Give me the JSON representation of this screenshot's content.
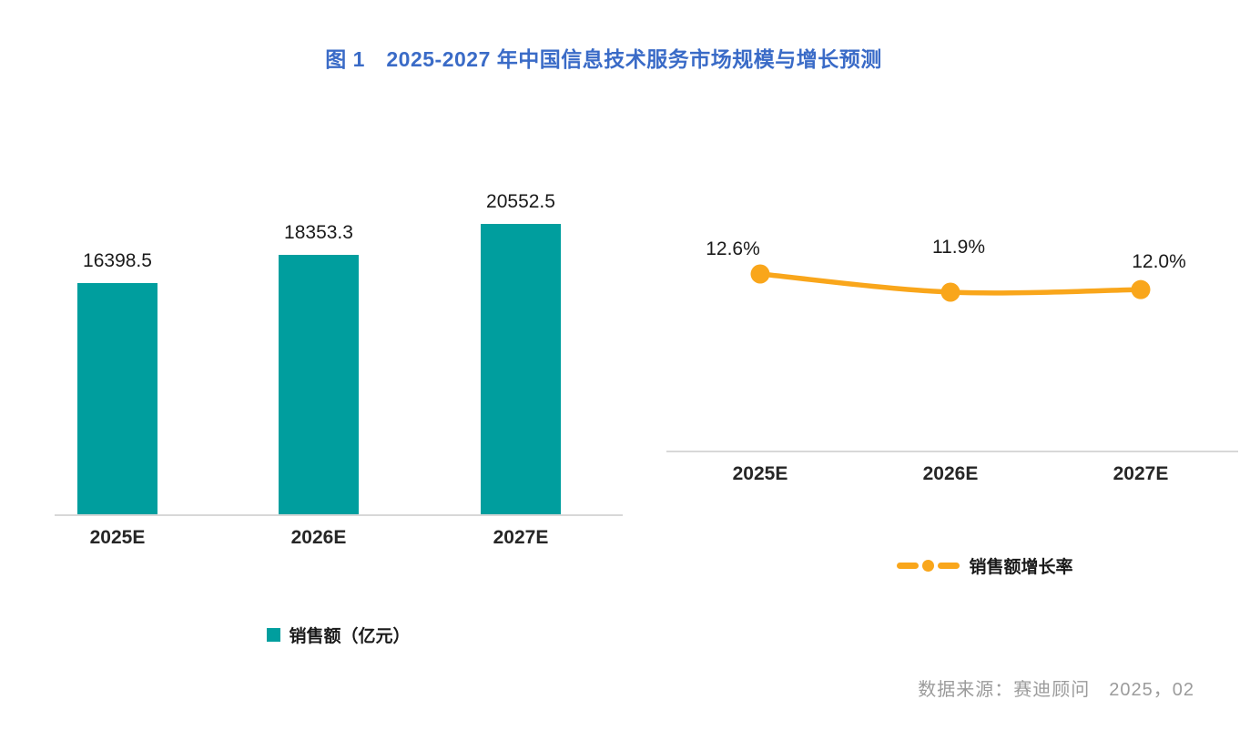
{
  "figure": {
    "title": "图 1　2025-2027 年中国信息技术服务市场规模与增长预测",
    "source_note": "数据来源：赛迪顾问　2025，02"
  },
  "colors": {
    "bar": "#009E9E",
    "line": "#F9A61B",
    "title": "#3A6BC7",
    "axis": "#D8D8D8",
    "text": "#1A1A1A",
    "source": "#9B9B9B"
  },
  "chart_data": [
    {
      "type": "bar",
      "title": "",
      "categories": [
        "2025E",
        "2026E",
        "2027E"
      ],
      "values": [
        16398.5,
        18353.3,
        20552.5
      ],
      "value_labels": [
        "16398.5",
        "18353.3",
        "20552.5"
      ],
      "legend": "销售额（亿元）",
      "series_name": "销售额（亿元）",
      "ylabel": "",
      "xlabel": "",
      "ylim": [
        0,
        20552.5
      ],
      "grid": false,
      "legend_position": "bottom",
      "bar_color": "#009E9E"
    },
    {
      "type": "line",
      "title": "",
      "categories": [
        "2025E",
        "2026E",
        "2027E"
      ],
      "values": [
        12.6,
        11.9,
        12.0
      ],
      "value_labels": [
        "12.6%",
        "11.9%",
        "12.0%"
      ],
      "legend": "销售额增长率",
      "series_name": "销售额增长率",
      "ylabel": "",
      "xlabel": "",
      "grid": false,
      "legend_position": "bottom",
      "line_color": "#F9A61B",
      "marker": "circle",
      "smooth": true
    }
  ]
}
